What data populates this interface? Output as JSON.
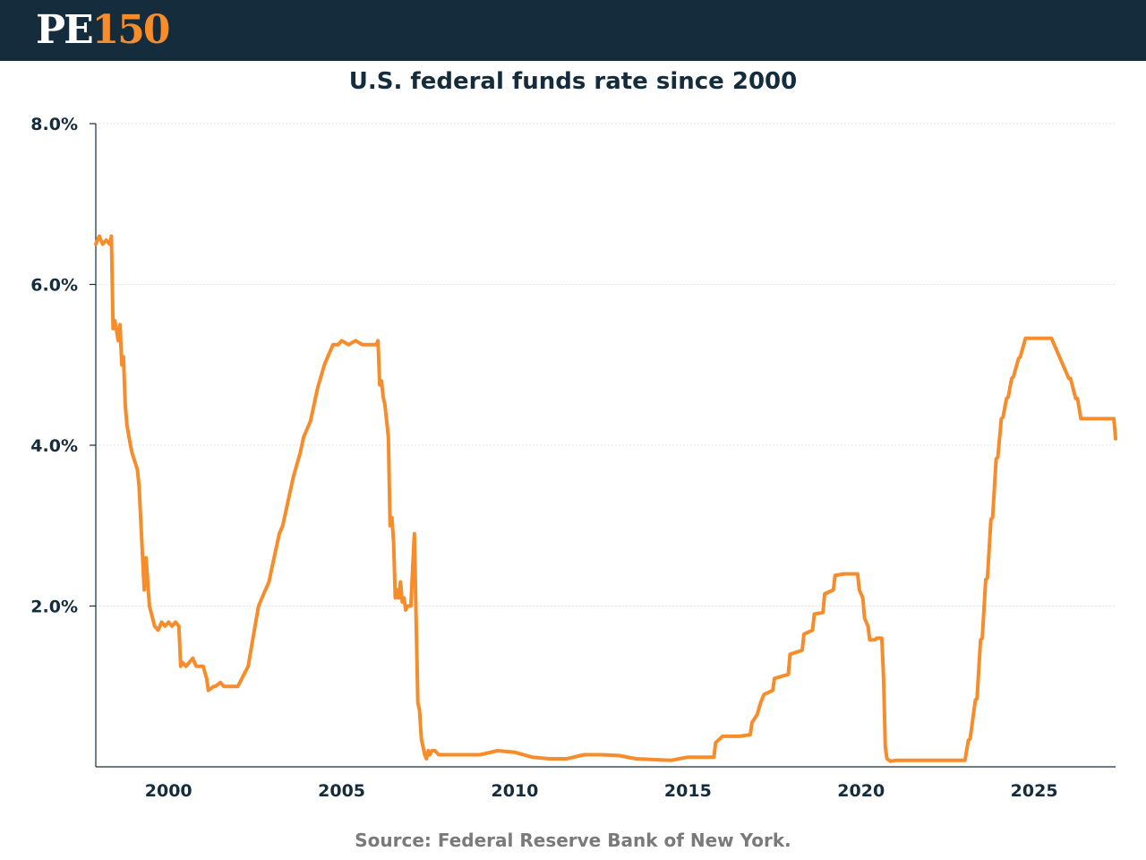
{
  "header": {
    "logo_pe": "PE",
    "logo_num": "150",
    "brand_color": "#142c3b",
    "accent_color": "#f68c2a"
  },
  "chart_data": {
    "type": "line",
    "title": "U.S. federal funds rate since 2000",
    "xlabel": "",
    "ylabel": "",
    "xlim": [
      1997.9,
      2027.35
    ],
    "ylim": [
      0,
      8
    ],
    "grid": true,
    "y_ticks": [
      {
        "value": 2,
        "label": "2.0%"
      },
      {
        "value": 4,
        "label": "4.0%"
      },
      {
        "value": 6,
        "label": "6.0%"
      },
      {
        "value": 8,
        "label": "8.0%"
      }
    ],
    "x_ticks": [
      {
        "value": 2000,
        "label": "2000"
      },
      {
        "value": 2005,
        "label": "2005"
      },
      {
        "value": 2010,
        "label": "2010"
      },
      {
        "value": 2015,
        "label": "2015"
      },
      {
        "value": 2020,
        "label": "2020"
      },
      {
        "value": 2025,
        "label": "2025"
      }
    ],
    "series": [
      {
        "name": "Federal funds rate",
        "color": "#f68c2a",
        "x": [
          1997.9,
          1998.0,
          1998.1,
          1998.2,
          1998.3,
          1998.35,
          1998.4,
          1998.45,
          1998.55,
          1998.6,
          1998.65,
          1998.7,
          1998.75,
          1998.8,
          1998.9,
          1998.95,
          1999.1,
          1999.15,
          1999.3,
          1999.35,
          1999.4,
          1999.45,
          1999.6,
          1999.7,
          1999.8,
          1999.9,
          2000.0,
          2000.1,
          2000.2,
          2000.3,
          2000.35,
          2000.4,
          2000.5,
          2000.7,
          2000.8,
          2001.0,
          2001.1,
          2001.15,
          2001.3,
          2001.35,
          2001.5,
          2001.6,
          2001.8,
          2002.0,
          2002.3,
          2002.4,
          2002.5,
          2002.6,
          2002.7,
          2002.8,
          2002.9,
          2003.0,
          2003.1,
          2003.2,
          2003.3,
          2003.4,
          2003.5,
          2003.6,
          2003.7,
          2003.8,
          2003.9,
          2004.0,
          2004.1,
          2004.2,
          2004.3,
          2004.4,
          2004.5,
          2004.6,
          2004.7,
          2004.75,
          2004.8,
          2004.9,
          2005.0,
          2005.2,
          2005.4,
          2005.6,
          2005.8,
          2006.0,
          2006.05,
          2006.1,
          2006.15,
          2006.2,
          2006.25,
          2006.3,
          2006.35,
          2006.4,
          2006.45,
          2006.5,
          2006.55,
          2006.6,
          2006.65,
          2006.7,
          2006.75,
          2006.8,
          2006.85,
          2006.9,
          2007.0,
          2007.1,
          2007.2,
          2007.25,
          2007.3,
          2007.35,
          2007.4,
          2007.45,
          2007.5,
          2007.55,
          2007.6,
          2007.7,
          2007.8,
          2008.0,
          2008.2,
          2008.5,
          2009.0,
          2009.5,
          2010.0,
          2010.5,
          2011.0,
          2011.5,
          2012.0,
          2012.5,
          2013.0,
          2013.5,
          2014.0,
          2014.5,
          2015.0,
          2015.5,
          2015.75,
          2015.8,
          2016.0,
          2016.5,
          2016.8,
          2016.85,
          2017.0,
          2017.1,
          2017.2,
          2017.45,
          2017.5,
          2017.9,
          2017.95,
          2018.3,
          2018.35,
          2018.6,
          2018.65,
          2018.9,
          2018.95,
          2019.2,
          2019.25,
          2019.5,
          2019.55,
          2019.9,
          2019.95,
          2020.05,
          2020.1,
          2020.2,
          2020.25,
          2020.4,
          2020.45,
          2020.6,
          2020.65,
          2020.7,
          2020.75,
          2020.85,
          2021.0,
          2021.5,
          2022.0,
          2022.5,
          2023.0,
          2023.1,
          2023.15,
          2023.3,
          2023.35,
          2023.45,
          2023.5,
          2023.6,
          2023.65,
          2023.75,
          2023.8,
          2023.9,
          2023.95,
          2024.05,
          2024.1,
          2024.2,
          2024.25,
          2024.35,
          2024.4,
          2024.55,
          2024.6,
          2024.75,
          2024.8,
          2025.0,
          2025.5,
          2026.0,
          2026.05,
          2026.2,
          2026.25,
          2026.35,
          2026.4,
          2026.8,
          2027.0,
          2027.3,
          2027.35
        ],
        "values": [
          6.5,
          6.6,
          6.5,
          6.55,
          6.5,
          6.6,
          5.45,
          5.55,
          5.3,
          5.5,
          5.0,
          5.1,
          4.5,
          4.25,
          4.0,
          3.9,
          3.7,
          3.5,
          2.2,
          2.6,
          2.3,
          2.0,
          1.75,
          1.7,
          1.8,
          1.75,
          1.8,
          1.75,
          1.8,
          1.75,
          1.25,
          1.3,
          1.25,
          1.35,
          1.25,
          1.25,
          1.1,
          0.95,
          1.0,
          1.0,
          1.05,
          1.0,
          1.0,
          1.0,
          1.25,
          1.5,
          1.75,
          2.0,
          2.1,
          2.2,
          2.3,
          2.5,
          2.7,
          2.9,
          3.0,
          3.2,
          3.4,
          3.6,
          3.75,
          3.9,
          4.1,
          4.2,
          4.3,
          4.5,
          4.7,
          4.85,
          5.0,
          5.1,
          5.2,
          5.25,
          5.25,
          5.25,
          5.3,
          5.25,
          5.3,
          5.25,
          5.25,
          5.25,
          5.3,
          4.75,
          4.8,
          4.6,
          4.5,
          4.3,
          4.1,
          3.0,
          3.1,
          2.8,
          2.1,
          2.2,
          2.1,
          2.3,
          2.05,
          2.1,
          1.95,
          2.0,
          2.0,
          2.9,
          0.8,
          0.7,
          0.35,
          0.25,
          0.15,
          0.1,
          0.2,
          0.15,
          0.2,
          0.2,
          0.15,
          0.15,
          0.15,
          0.15,
          0.15,
          0.2,
          0.18,
          0.12,
          0.1,
          0.1,
          0.15,
          0.15,
          0.14,
          0.1,
          0.09,
          0.08,
          0.12,
          0.12,
          0.12,
          0.3,
          0.38,
          0.38,
          0.4,
          0.55,
          0.65,
          0.8,
          0.9,
          0.95,
          1.1,
          1.15,
          1.4,
          1.45,
          1.65,
          1.7,
          1.9,
          1.92,
          2.15,
          2.2,
          2.38,
          2.4,
          2.4,
          2.4,
          2.2,
          2.1,
          1.85,
          1.75,
          1.58,
          1.58,
          1.6,
          1.6,
          1.1,
          0.25,
          0.1,
          0.07,
          0.08,
          0.08,
          0.08,
          0.08,
          0.08,
          0.33,
          0.35,
          0.83,
          0.85,
          1.58,
          1.6,
          2.33,
          2.35,
          3.08,
          3.1,
          3.83,
          3.85,
          4.33,
          4.35,
          4.58,
          4.6,
          4.83,
          4.85,
          5.08,
          5.1,
          5.33,
          5.33,
          5.33,
          5.33,
          4.83,
          4.83,
          4.58,
          4.58,
          4.33,
          4.33,
          4.33,
          4.33,
          4.33,
          4.08
        ]
      }
    ]
  },
  "footer": {
    "source": "Source: Federal Reserve Bank of New York."
  }
}
